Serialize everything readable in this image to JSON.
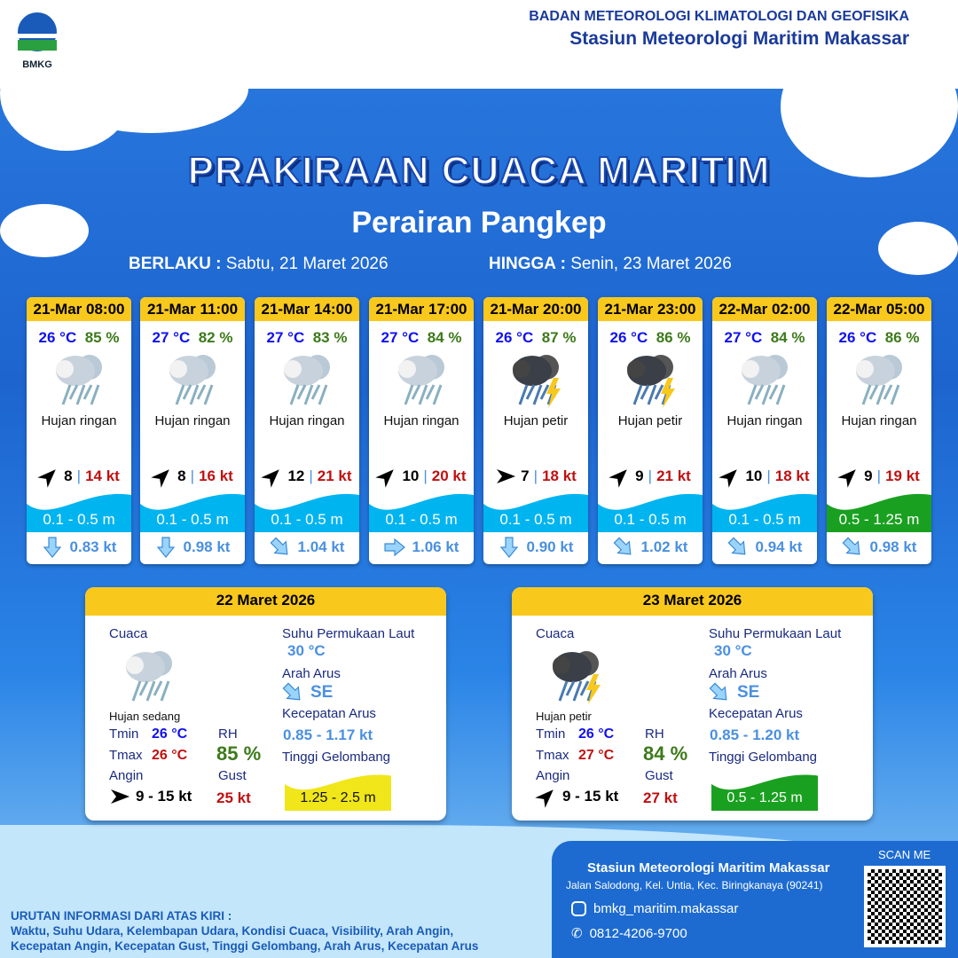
{
  "header": {
    "org": "BADAN METEOROLOGI KLIMATOLOGI DAN GEOFISIKA",
    "station": "Stasiun Meteorologi Maritim Makassar",
    "logo_text": "BMKG"
  },
  "title": "PRAKIRAAN CUACA MARITIM",
  "subtitle": "Perairan Pangkep",
  "validity": {
    "from_label": "BERLAKU :",
    "from": "Sabtu, 21 Maret 2026",
    "to_label": "HINGGA :",
    "to": "Senin, 23 Maret 2026"
  },
  "colors": {
    "wave_low": "#00b4f0",
    "wave_moderate": "#1aa020",
    "wave_high": "#f0e61a",
    "header_yellow": "#f8c81c"
  },
  "forecasts": [
    {
      "time": "21-Mar 08:00",
      "temp": "26 °C",
      "rh": "85 %",
      "icon": "light-rain-icon",
      "weather": "Hujan ringan",
      "wind_dir_deg": 45,
      "wind": "8",
      "gust": "14 kt",
      "wave": "0.1 - 0.5 m",
      "wave_level": "low",
      "current_dir_deg": 180,
      "current": "0.83 kt"
    },
    {
      "time": "21-Mar 11:00",
      "temp": "27 °C",
      "rh": "82 %",
      "icon": "light-rain-icon",
      "weather": "Hujan ringan",
      "wind_dir_deg": 45,
      "wind": "8",
      "gust": "16 kt",
      "wave": "0.1 - 0.5 m",
      "wave_level": "low",
      "current_dir_deg": 180,
      "current": "0.98 kt"
    },
    {
      "time": "21-Mar 14:00",
      "temp": "27 °C",
      "rh": "83 %",
      "icon": "light-rain-icon",
      "weather": "Hujan ringan",
      "wind_dir_deg": 45,
      "wind": "12",
      "gust": "21 kt",
      "wave": "0.1 - 0.5 m",
      "wave_level": "low",
      "current_dir_deg": 135,
      "current": "1.04 kt"
    },
    {
      "time": "21-Mar 17:00",
      "temp": "27 °C",
      "rh": "84 %",
      "icon": "light-rain-icon",
      "weather": "Hujan ringan",
      "wind_dir_deg": 45,
      "wind": "10",
      "gust": "20 kt",
      "wave": "0.1 - 0.5 m",
      "wave_level": "low",
      "current_dir_deg": 90,
      "current": "1.06 kt"
    },
    {
      "time": "21-Mar 20:00",
      "temp": "26 °C",
      "rh": "87 %",
      "icon": "thunderstorm-icon",
      "weather": "Hujan petir",
      "wind_dir_deg": 90,
      "wind": "7",
      "gust": "18 kt",
      "wave": "0.1 - 0.5 m",
      "wave_level": "low",
      "current_dir_deg": 180,
      "current": "0.90 kt"
    },
    {
      "time": "21-Mar 23:00",
      "temp": "26 °C",
      "rh": "86 %",
      "icon": "thunderstorm-icon",
      "weather": "Hujan petir",
      "wind_dir_deg": 45,
      "wind": "9",
      "gust": "21 kt",
      "wave": "0.1 - 0.5 m",
      "wave_level": "low",
      "current_dir_deg": 135,
      "current": "1.02 kt"
    },
    {
      "time": "22-Mar 02:00",
      "temp": "27 °C",
      "rh": "84 %",
      "icon": "light-rain-icon",
      "weather": "Hujan ringan",
      "wind_dir_deg": 45,
      "wind": "10",
      "gust": "18 kt",
      "wave": "0.1 - 0.5 m",
      "wave_level": "low",
      "current_dir_deg": 135,
      "current": "0.94 kt"
    },
    {
      "time": "22-Mar 05:00",
      "temp": "26 °C",
      "rh": "86 %",
      "icon": "light-rain-icon",
      "weather": "Hujan ringan",
      "wind_dir_deg": 45,
      "wind": "9",
      "gust": "19 kt",
      "wave": "0.5 - 1.25 m",
      "wave_level": "moderate",
      "current_dir_deg": 135,
      "current": "0.98 kt"
    }
  ],
  "labels": {
    "weather": "Cuaca",
    "sst": "Suhu Permukaan Laut",
    "current_dir": "Arah Arus",
    "current_speed": "Kecepatan Arus",
    "wave": "Tinggi Gelombang",
    "tmin": "Tmin",
    "tmax": "Tmax",
    "rh": "RH",
    "wind": "Angin",
    "gust": "Gust"
  },
  "daily": [
    {
      "date": "22 Maret 2026",
      "icon": "moderate-rain-icon",
      "weather": "Hujan sedang",
      "tmin": "26 °C",
      "tmax": "26 °C",
      "rh": "85 %",
      "wind_dir_deg": 90,
      "wind": "9  - 15 kt",
      "gust": "25 kt",
      "sst": "30 °C",
      "current_dir": "SE",
      "current_speed": "0.85  - 1.17 kt",
      "wave": "1.25 - 2.5 m",
      "wave_level": "high"
    },
    {
      "date": "23 Maret 2026",
      "icon": "thunderstorm-icon",
      "weather": "Hujan petir",
      "tmin": "26 °C",
      "tmax": "27 °C",
      "rh": "84 %",
      "wind_dir_deg": 45,
      "wind": "9  - 15 kt",
      "gust": "27 kt",
      "sst": "30 °C",
      "current_dir": "SE",
      "current_speed": "0.85  - 1.20 kt",
      "wave": "0.5 - 1.25 m",
      "wave_level": "moderate"
    }
  ],
  "notes": {
    "heading": "URUTAN INFORMASI DARI ATAS KIRI :",
    "line1": "Waktu, Suhu Udara, Kelembapan Udara, Kondisi Cuaca, Visibility, Arah Angin,",
    "line2": "Kecepatan Angin, Kecepatan Gust, Tinggi Gelombang, Arah Arus, Kecepatan Arus"
  },
  "footer": {
    "station": "Stasiun Meteorologi Maritim Makassar",
    "address": "Jalan Salodong, Kel. Untia, Kec. Biringkanaya (90241)",
    "instagram": "bmkg_maritim.makassar",
    "phone": "0812-4206-9700",
    "scan": "SCAN ME"
  }
}
